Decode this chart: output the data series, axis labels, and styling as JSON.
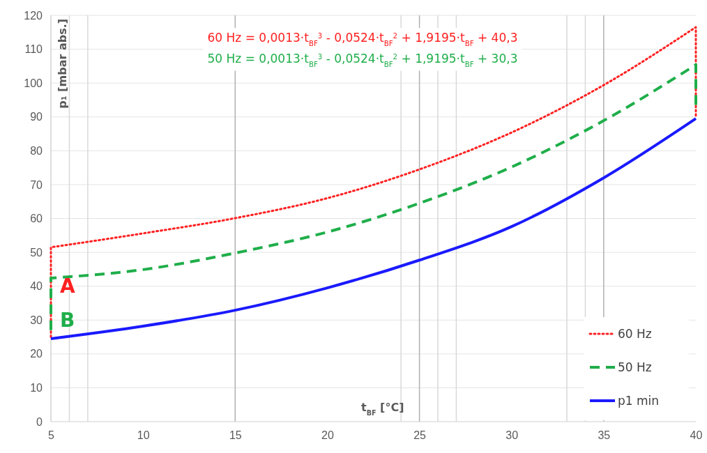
{
  "chart_data": {
    "type": "line",
    "xlabel": "t$_{BF}$ [°C]",
    "ylabel": "p₁ [mbar abs.]",
    "xlim": [
      5,
      40
    ],
    "xticks": [
      5,
      10,
      15,
      20,
      25,
      30,
      35,
      40
    ],
    "ylim": [
      0,
      120
    ],
    "yticks": [
      0,
      10,
      20,
      30,
      40,
      50,
      60,
      70,
      80,
      90,
      100,
      110,
      120
    ],
    "grid": "y",
    "legend": "bottom right",
    "series": [
      {
        "name": "60 Hz",
        "color": "#ff2020",
        "line_style": "dotted",
        "x": [
          5,
          5,
          10,
          15,
          20,
          25,
          30,
          35,
          40,
          40
        ],
        "values": [
          25,
          51.5,
          55.6,
          60.1,
          66,
          74.5,
          85.4,
          99.4,
          116.5,
          90
        ]
      },
      {
        "name": "50 Hz",
        "color": "#1fae4a",
        "line_style": "dashed",
        "x": [
          5,
          5,
          10,
          15,
          20,
          25,
          30,
          35,
          40,
          40
        ],
        "values": [
          27,
          42.4,
          44.9,
          49.8,
          56,
          64.5,
          75.2,
          88.9,
          105.4,
          92
        ]
      },
      {
        "name": "p1 min",
        "color": "#1a1aff",
        "line_style": "solid",
        "x": [
          5,
          10,
          15,
          20,
          25,
          30,
          35,
          40
        ],
        "values": [
          24.5,
          28.2,
          32.9,
          39.5,
          47.7,
          57.6,
          72,
          89.5
        ]
      }
    ],
    "ref_lines": [
      {
        "axis": "x",
        "value": 6,
        "color": "#d9d9d9"
      },
      {
        "axis": "x",
        "value": 7,
        "color": "#d9d9d9"
      },
      {
        "axis": "x",
        "value": 15,
        "color": "#b0b0b0"
      },
      {
        "axis": "x",
        "value": 24,
        "color": "#d9d9d9"
      },
      {
        "axis": "x",
        "value": 25,
        "color": "#b0b0b0"
      },
      {
        "axis": "x",
        "value": 26,
        "color": "#d9d9d9"
      },
      {
        "axis": "x",
        "value": 27,
        "color": "#d9d9d9"
      },
      {
        "axis": "x",
        "value": 33,
        "color": "#d9d9d9"
      },
      {
        "axis": "x",
        "value": 34,
        "color": "#d9d9d9"
      },
      {
        "axis": "x",
        "value": 35,
        "color": "#b0b0b0"
      }
    ],
    "annotations": [
      "60 Hz = 0,0013·t$_{BF}$$^{3}$ - 0,0524·t$_{BF}$$^{2}$ + 1,9195·t$_{BF}$ + 40,3",
      "50 Hz = 0,0013·t$_{BF}$$^{3}$ - 0,0524·t$_{BF}$$^{2}$ + 1,9195·t$_{BF}$ + 30,3",
      {
        "text": "A",
        "x": 5.9,
        "y": 40
      },
      {
        "text": "B",
        "x": 5.9,
        "y": 30
      }
    ]
  }
}
